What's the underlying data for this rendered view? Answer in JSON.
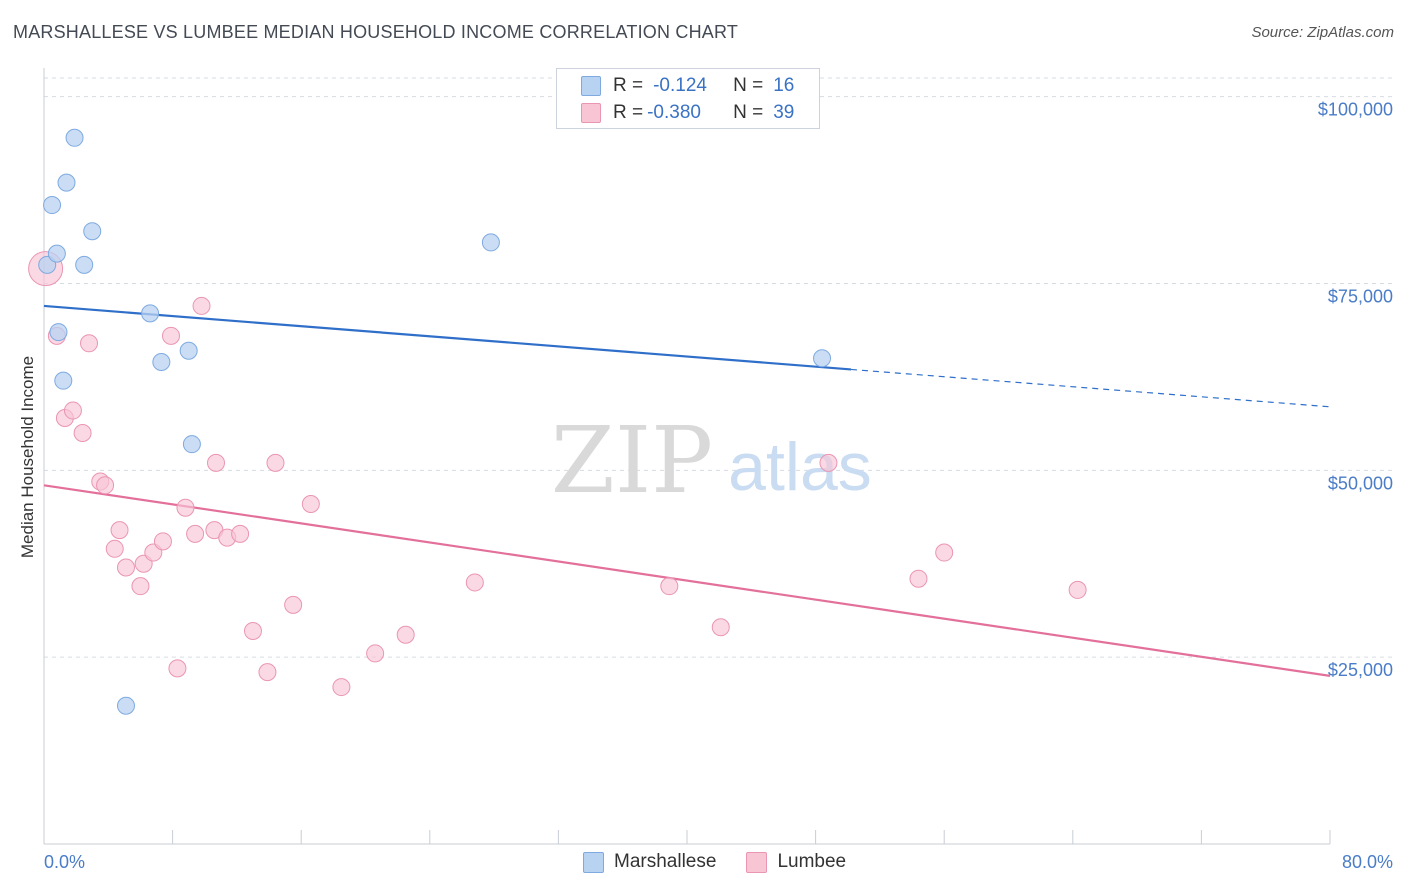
{
  "title": "MARSHALLESE VS LUMBEE MEDIAN HOUSEHOLD INCOME CORRELATION CHART",
  "source": "Source: ZipAtlas.com",
  "watermark": {
    "zip": "ZIP",
    "atlas": "atlas"
  },
  "legend_top": {
    "rows": [
      {
        "r_label": "R =",
        "r_value": "-0.124",
        "n_label": "N =",
        "n_value": "16"
      },
      {
        "r_label": "R =",
        "r_value": "-0.380",
        "n_label": "N =",
        "n_value": "39"
      }
    ]
  },
  "legend_bottom": {
    "items": [
      "Marshallese",
      "Lumbee"
    ]
  },
  "colors": {
    "marshallese_fill": "#b8d2f2",
    "marshallese_stroke": "#7eaae0",
    "marshallese_line": "#2f6fc9",
    "lumbee_fill": "#f8c5d5",
    "lumbee_stroke": "#ea95b2",
    "lumbee_line": "#e3709a",
    "tick_label": "#4a7cc7",
    "grid": "#d6dce4"
  },
  "chart_data": {
    "type": "scatter",
    "title": "MARSHALLESE VS LUMBEE MEDIAN HOUSEHOLD INCOME CORRELATION CHART",
    "xlabel": "",
    "ylabel": "Median Household Income",
    "xlim": [
      0,
      80
    ],
    "ylim": [
      0,
      102500
    ],
    "x_tick_labels": [
      "0.0%",
      "80.0%"
    ],
    "y_ticks": [
      25000,
      50000,
      75000,
      100000
    ],
    "y_tick_labels": [
      "$25,000",
      "$50,000",
      "$75,000",
      "$100,000"
    ],
    "grid": true,
    "legend_position": "bottom",
    "series": [
      {
        "name": "Marshallese",
        "r": -0.124,
        "n": 16,
        "points": [
          [
            0.2,
            77500
          ],
          [
            0.5,
            85500
          ],
          [
            0.8,
            79000
          ],
          [
            0.9,
            68500
          ],
          [
            1.2,
            62000
          ],
          [
            1.4,
            88500
          ],
          [
            1.9,
            94500
          ],
          [
            2.5,
            77500
          ],
          [
            3.0,
            82000
          ],
          [
            5.1,
            18500
          ],
          [
            6.6,
            71000
          ],
          [
            7.3,
            64500
          ],
          [
            9.0,
            66000
          ],
          [
            9.2,
            53500
          ],
          [
            27.8,
            80500
          ],
          [
            48.4,
            65000
          ]
        ],
        "trend": {
          "x0": 0,
          "y0": 72000,
          "x1": 50.2,
          "y1": 63500,
          "dashed_to_x": 80,
          "dashed_to_y": 58500
        }
      },
      {
        "name": "Lumbee",
        "r": -0.38,
        "n": 39,
        "points": [
          [
            0.1,
            77000
          ],
          [
            0.8,
            68000
          ],
          [
            1.3,
            57000
          ],
          [
            1.8,
            58000
          ],
          [
            2.4,
            55000
          ],
          [
            2.8,
            67000
          ],
          [
            3.5,
            48500
          ],
          [
            3.8,
            48000
          ],
          [
            4.4,
            39500
          ],
          [
            4.7,
            42000
          ],
          [
            5.1,
            37000
          ],
          [
            6.0,
            34500
          ],
          [
            6.2,
            37500
          ],
          [
            6.8,
            39000
          ],
          [
            7.4,
            40500
          ],
          [
            7.9,
            68000
          ],
          [
            8.3,
            23500
          ],
          [
            8.8,
            45000
          ],
          [
            9.4,
            41500
          ],
          [
            9.8,
            72000
          ],
          [
            10.6,
            42000
          ],
          [
            10.7,
            51000
          ],
          [
            11.4,
            41000
          ],
          [
            12.2,
            41500
          ],
          [
            13.0,
            28500
          ],
          [
            13.9,
            23000
          ],
          [
            14.4,
            51000
          ],
          [
            15.5,
            32000
          ],
          [
            16.6,
            45500
          ],
          [
            18.5,
            21000
          ],
          [
            20.6,
            25500
          ],
          [
            22.5,
            28000
          ],
          [
            26.8,
            35000
          ],
          [
            38.9,
            34500
          ],
          [
            42.1,
            29000
          ],
          [
            48.8,
            51000
          ],
          [
            54.4,
            35500
          ],
          [
            56.0,
            39000
          ],
          [
            64.3,
            34000
          ]
        ],
        "trend": {
          "x0": 0,
          "y0": 48000,
          "x1": 80,
          "y1": 22500
        }
      }
    ]
  }
}
